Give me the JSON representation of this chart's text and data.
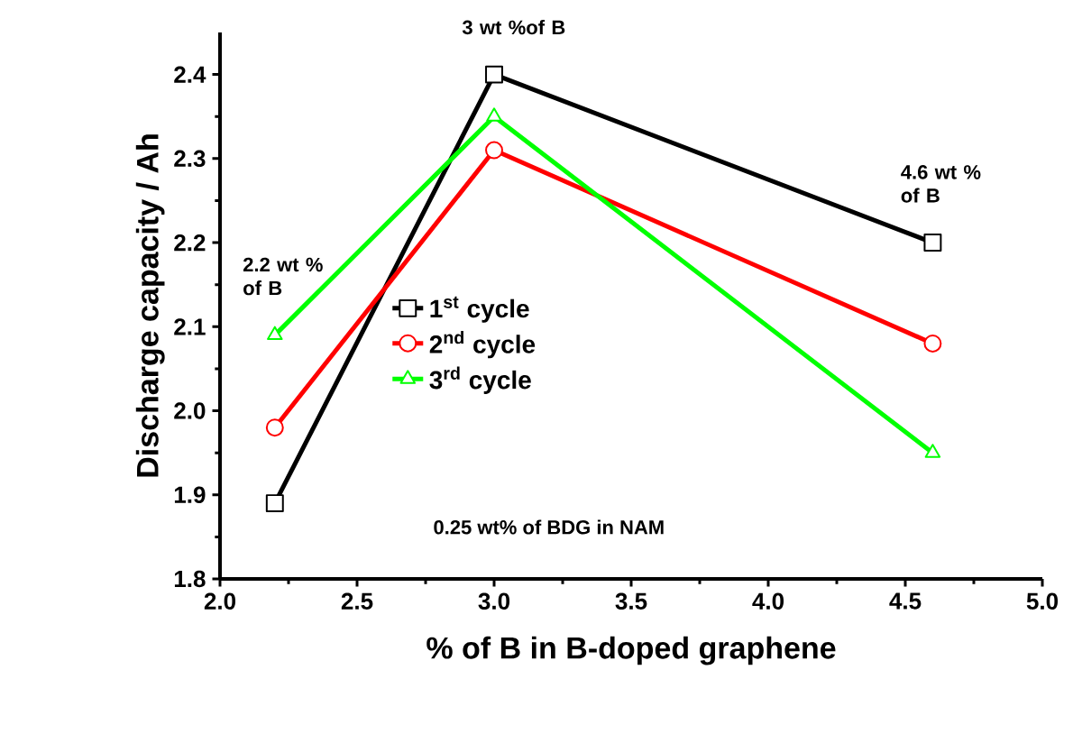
{
  "chart_data": {
    "type": "line",
    "xlabel": "% of B in B-doped graphene",
    "ylabel": "Discharge capacity / Ah",
    "x": [
      2.2,
      3.0,
      4.6
    ],
    "series": [
      {
        "name": "1$^{st}$ cycle",
        "color": "#000000",
        "marker": "square",
        "values": [
          1.89,
          2.4,
          2.2
        ]
      },
      {
        "name": "2$^{nd}$ cycle",
        "color": "#ff0000",
        "marker": "circle",
        "values": [
          1.98,
          2.31,
          2.08
        ]
      },
      {
        "name": "3$^{rd}$ cycle",
        "color": "#00ff00",
        "marker": "triangle",
        "values": [
          2.09,
          2.35,
          1.95
        ]
      }
    ],
    "xlim": [
      2.0,
      5.0
    ],
    "xticks": [
      {
        "value": 2.0,
        "label": "2.0"
      },
      {
        "value": 2.5,
        "label": "2.5"
      },
      {
        "value": 3.0,
        "label": "3.0"
      },
      {
        "value": 3.5,
        "label": "3.5"
      },
      {
        "value": 4.0,
        "label": "4.0"
      },
      {
        "value": 4.5,
        "label": "4.5"
      },
      {
        "value": 5.0,
        "label": "5.0"
      }
    ],
    "ylim": [
      1.8,
      2.45
    ],
    "yticks": [
      {
        "value": 1.8,
        "label": "1.8"
      },
      {
        "value": 1.9,
        "label": "1.9"
      },
      {
        "value": 2.0,
        "label": "2.0"
      },
      {
        "value": 2.1,
        "label": "2.1"
      },
      {
        "value": 2.2,
        "label": "2.2"
      },
      {
        "value": 2.3,
        "label": "2.3"
      },
      {
        "value": 2.4,
        "label": "2.4"
      }
    ],
    "annotations": [
      {
        "text": "3 wt %of B",
        "x": 3.0,
        "y": 2.4
      },
      {
        "text": "2.2 wt % of B",
        "x": 2.2,
        "y": 2.09
      },
      {
        "text": "4.6 wt % of B",
        "x": 4.6,
        "y": 2.2
      },
      "0.25 wt% of BDG in NAM"
    ],
    "legend": "left",
    "grid": false,
    "line_style": "solid"
  }
}
